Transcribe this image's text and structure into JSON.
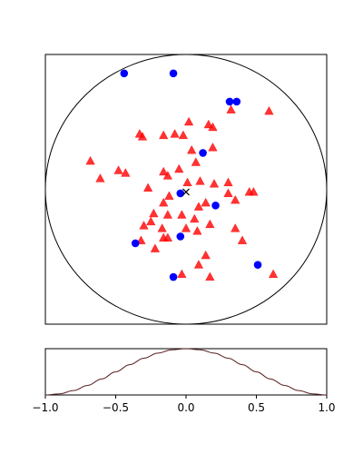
{
  "chart_data": [
    {
      "type": "scatter",
      "title": "",
      "xlabel": "",
      "ylabel": "",
      "xlim": [
        -1.0,
        1.0
      ],
      "ylim": [
        -1.0,
        1.0
      ],
      "grid": false,
      "circle": {
        "center": [
          0,
          0
        ],
        "radius": 1.0,
        "color": "#000000"
      },
      "center_marker": {
        "x": 0.0,
        "y": -0.02,
        "marker": "x",
        "color": "#000000"
      },
      "series": [
        {
          "marker": "triangle",
          "color": "#ff0000",
          "points": [
            [
              -0.68,
              0.21
            ],
            [
              -0.61,
              0.08
            ],
            [
              -0.48,
              0.14
            ],
            [
              -0.43,
              0.12
            ],
            [
              -0.33,
              0.41
            ],
            [
              -0.31,
              0.39
            ],
            [
              -0.27,
              0.01
            ],
            [
              -0.25,
              -0.24
            ],
            [
              -0.23,
              -0.18
            ],
            [
              -0.16,
              -0.36
            ],
            [
              -0.32,
              -0.38
            ],
            [
              -0.3,
              -0.27
            ],
            [
              -0.22,
              -0.44
            ],
            [
              -0.17,
              -0.29
            ],
            [
              -0.16,
              -0.1
            ],
            [
              -0.16,
              0.4
            ],
            [
              -0.16,
              0.13
            ],
            [
              -0.13,
              0.1
            ],
            [
              -0.13,
              -0.19
            ],
            [
              -0.13,
              -0.36
            ],
            [
              -0.12,
              -0.05
            ],
            [
              -0.08,
              0.41
            ],
            [
              -0.05,
              0.15
            ],
            [
              -0.03,
              -0.19
            ],
            [
              -0.03,
              -0.63
            ],
            [
              -0.02,
              0.4
            ],
            [
              0.0,
              -0.29
            ],
            [
              0.01,
              0.05
            ],
            [
              0.02,
              0.5
            ],
            [
              0.04,
              0.29
            ],
            [
              0.06,
              -0.22
            ],
            [
              0.07,
              0.2
            ],
            [
              0.08,
              -0.31
            ],
            [
              0.09,
              -0.13
            ],
            [
              0.09,
              -0.56
            ],
            [
              0.1,
              0.06
            ],
            [
              0.14,
              -0.1
            ],
            [
              0.14,
              -0.49
            ],
            [
              0.16,
              0.48
            ],
            [
              0.17,
              -0.26
            ],
            [
              0.17,
              -0.65
            ],
            [
              0.19,
              0.31
            ],
            [
              0.19,
              0.46
            ],
            [
              0.2,
              0.04
            ],
            [
              0.3,
              0.05
            ],
            [
              0.3,
              -0.03
            ],
            [
              0.32,
              0.59
            ],
            [
              0.35,
              -0.08
            ],
            [
              0.35,
              -0.29
            ],
            [
              0.4,
              -0.38
            ],
            [
              0.45,
              -0.02
            ],
            [
              0.48,
              -0.02
            ],
            [
              0.59,
              0.58
            ],
            [
              0.62,
              -0.63
            ]
          ]
        },
        {
          "marker": "circle",
          "color": "#0000ff",
          "points": [
            [
              -0.44,
              0.86
            ],
            [
              -0.09,
              0.86
            ],
            [
              0.31,
              0.65
            ],
            [
              0.36,
              0.65
            ],
            [
              0.12,
              0.27
            ],
            [
              -0.04,
              -0.03
            ],
            [
              0.21,
              -0.12
            ],
            [
              -0.36,
              -0.4
            ],
            [
              -0.04,
              -0.35
            ],
            [
              -0.09,
              -0.65
            ],
            [
              0.51,
              -0.56
            ]
          ]
        }
      ]
    },
    {
      "type": "line",
      "title": "",
      "xlabel": "",
      "ylabel": "",
      "xlim": [
        -1.0,
        1.0
      ],
      "ylim": [
        0.0,
        1.0
      ],
      "grid": false,
      "x_ticks": [
        "−1.0",
        "−0.5",
        "0.0",
        "0.5",
        "1.0"
      ],
      "x_tick_values": [
        -1.0,
        -0.5,
        0.0,
        0.5,
        1.0
      ],
      "series": [
        {
          "color": "#5a1f1f",
          "x": [
            -1.0,
            -0.9,
            -0.8,
            -0.7,
            -0.6,
            -0.5,
            -0.4,
            -0.3,
            -0.2,
            -0.1,
            0.0,
            0.1,
            0.2,
            0.3,
            0.4,
            0.5,
            0.6,
            0.7,
            0.8,
            0.9,
            1.0
          ],
          "y": [
            0.0,
            0.024,
            0.095,
            0.206,
            0.345,
            0.5,
            0.655,
            0.794,
            0.905,
            0.976,
            1.0,
            0.976,
            0.905,
            0.794,
            0.655,
            0.5,
            0.345,
            0.206,
            0.095,
            0.024,
            0.0
          ]
        }
      ]
    }
  ]
}
